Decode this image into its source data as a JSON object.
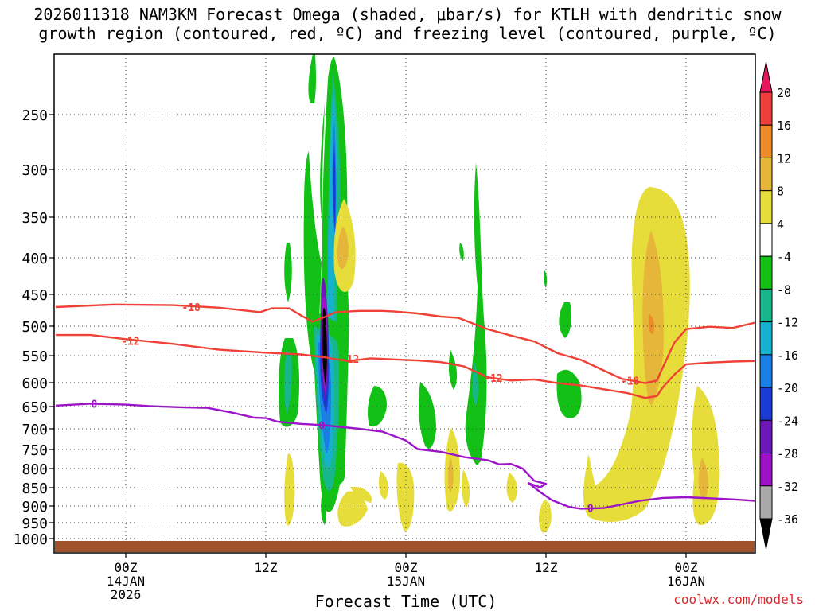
{
  "title_line1": "2026011318 NAM3KM Forecast Omega (shaded, μbar/s) for KTLH with dendritic snow",
  "title_line2": "growth region (contoured, red, ºC) and freezing level (contoured, purple, ºC)",
  "credit": "coolwx.com/models",
  "chart_data": {
    "type": "time-height cross-section",
    "title": "2026011318 NAM3KM Forecast Omega (shaded, μbar/s) for KTLH with dendritic snow growth region (contoured, red, ºC) and freezing level (contoured, purple, ºC)",
    "xlabel": "Forecast Time (UTC)",
    "ylabel": "",
    "x_ticks": [
      {
        "hour": 6,
        "lines": [
          "00Z",
          "14JAN",
          "2026"
        ]
      },
      {
        "hour": 18,
        "lines": [
          "12Z"
        ]
      },
      {
        "hour": 30,
        "lines": [
          "00Z",
          "15JAN"
        ]
      },
      {
        "hour": 42,
        "lines": [
          "12Z"
        ]
      },
      {
        "hour": 54,
        "lines": [
          "00Z",
          "16JAN"
        ]
      }
    ],
    "x_range_hours": [
      0,
      60
    ],
    "y_levels_hpa": [
      250,
      300,
      350,
      400,
      450,
      500,
      550,
      600,
      650,
      700,
      750,
      800,
      850,
      900,
      950,
      1000
    ],
    "y_range_hpa": [
      195,
      1025
    ],
    "colorbar": {
      "labels": [
        "20",
        "16",
        "12",
        "8",
        "4",
        "-4",
        "-8",
        "-12",
        "-16",
        "-20",
        "-24",
        "-28",
        "-32",
        "-36"
      ],
      "colors": [
        "#e8175d",
        "#ef3d3d",
        "#ec8b2b",
        "#e5b63a",
        "#e6dd3b",
        "#ffffff",
        "#12c016",
        "#18b68c",
        "#16b1cf",
        "#1a7ee2",
        "#1c3ad4",
        "#6a19b6",
        "#9d12c5",
        "#a8a8a8",
        "#000000"
      ]
    },
    "contours": [
      {
        "name": "dendritic-top",
        "value": -18,
        "label": "-18",
        "color": "#ef4136",
        "points": [
          [
            0,
            470
          ],
          [
            5,
            466
          ],
          [
            10,
            467
          ],
          [
            14,
            471
          ],
          [
            17.5,
            478
          ],
          [
            18.5,
            472
          ],
          [
            20,
            472
          ],
          [
            21,
            483
          ],
          [
            22,
            493
          ],
          [
            23,
            486
          ],
          [
            24,
            478
          ],
          [
            25,
            477
          ],
          [
            26,
            476
          ],
          [
            27,
            476
          ],
          [
            28,
            476
          ],
          [
            29,
            477
          ],
          [
            31,
            480
          ],
          [
            33,
            485
          ],
          [
            34.5,
            487
          ],
          [
            35.5,
            494
          ],
          [
            37,
            505
          ],
          [
            39,
            516
          ],
          [
            41,
            526
          ],
          [
            43,
            546
          ],
          [
            45,
            558
          ],
          [
            47,
            578
          ],
          [
            48.5,
            593
          ],
          [
            50.5,
            601
          ],
          [
            51.5,
            596
          ],
          [
            52,
            572
          ],
          [
            53,
            528
          ],
          [
            54,
            505
          ],
          [
            56,
            501
          ],
          [
            58,
            503
          ],
          [
            60,
            494
          ]
        ]
      },
      {
        "name": "dendritic-bottom",
        "value": -12,
        "label": "-12",
        "color": "#ef4136",
        "points": [
          [
            0,
            515
          ],
          [
            3,
            515
          ],
          [
            6,
            522
          ],
          [
            10,
            530
          ],
          [
            14,
            540
          ],
          [
            18,
            545
          ],
          [
            21,
            548
          ],
          [
            23,
            553
          ],
          [
            25,
            560
          ],
          [
            27,
            555
          ],
          [
            29,
            557
          ],
          [
            31,
            559
          ],
          [
            33,
            562
          ],
          [
            35,
            570
          ],
          [
            37,
            590
          ],
          [
            39,
            596
          ],
          [
            41,
            594
          ],
          [
            43,
            601
          ],
          [
            45,
            606
          ],
          [
            47,
            614
          ],
          [
            49,
            622
          ],
          [
            50.5,
            632
          ],
          [
            51.5,
            628
          ],
          [
            52,
            610
          ],
          [
            53,
            585
          ],
          [
            54,
            566
          ],
          [
            56,
            563
          ],
          [
            58,
            561
          ],
          [
            60,
            560
          ]
        ]
      },
      {
        "name": "freezing-level",
        "value": 0,
        "label": "0",
        "color": "#9b14c8",
        "points": [
          [
            0,
            648
          ],
          [
            3,
            644
          ],
          [
            6,
            646
          ],
          [
            8,
            649
          ],
          [
            11,
            652
          ],
          [
            13,
            653
          ],
          [
            15,
            663
          ],
          [
            17,
            675
          ],
          [
            18,
            676
          ],
          [
            19,
            684
          ],
          [
            21,
            689
          ],
          [
            23,
            692
          ],
          [
            26,
            700
          ],
          [
            28,
            707
          ],
          [
            30,
            728
          ],
          [
            31,
            749
          ],
          [
            33,
            756
          ],
          [
            35,
            770
          ],
          [
            37,
            778
          ],
          [
            38,
            789
          ],
          [
            39,
            788
          ],
          [
            40,
            800
          ],
          [
            41,
            832
          ],
          [
            42,
            840
          ],
          [
            41.5,
            849
          ],
          [
            40.5,
            838
          ],
          [
            41.5,
            862
          ],
          [
            42.5,
            884
          ],
          [
            44,
            903
          ],
          [
            45,
            908
          ],
          [
            47,
            906
          ],
          [
            48,
            899
          ],
          [
            50,
            886
          ],
          [
            52,
            878
          ],
          [
            54,
            876
          ],
          [
            56,
            879
          ],
          [
            58,
            882
          ],
          [
            60,
            886
          ]
        ]
      }
    ],
    "omega_regions": [
      {
        "value": -6,
        "hour": 21.5,
        "hpa": 560,
        "note": "main ascent column"
      },
      {
        "value": -16,
        "hour": 21.5,
        "hpa": 580
      },
      {
        "value": -36,
        "hour": 21.5,
        "hpa": 570,
        "note": "core minimum"
      },
      {
        "value": -6,
        "hour": 19.2,
        "hpa": 595
      },
      {
        "value": -6,
        "hour": 22.2,
        "hpa": 250
      },
      {
        "value": -6,
        "hour": 35.9,
        "hpa": 470
      },
      {
        "value": -6,
        "hour": 42.8,
        "hpa": 570
      },
      {
        "value": 6,
        "hour": 51.5,
        "hpa": 650,
        "note": "descent region"
      },
      {
        "value": 10,
        "hour": 51.5,
        "hpa": 470
      },
      {
        "value": 6,
        "hour": 55.2,
        "hpa": 780
      },
      {
        "value": 6,
        "hour": 23.5,
        "hpa": 390
      }
    ]
  }
}
